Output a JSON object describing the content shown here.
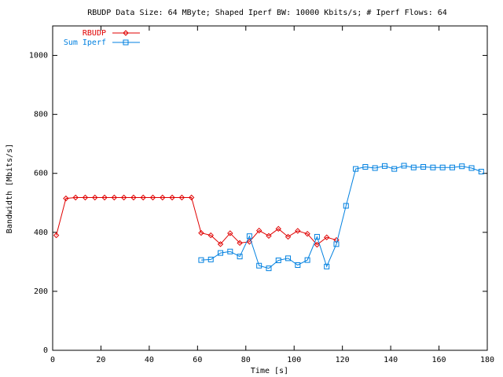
{
  "chart_data": {
    "type": "line",
    "title": "RBUDP Data Size: 64 MByte; Shaped Iperf BW: 10000 Kbits/s; # Iperf Flows: 64",
    "x_label": "Time [s]",
    "y_label": "Bandwidth [Mbits/s]",
    "xlim": [
      0,
      180
    ],
    "xticks": [
      0,
      20,
      40,
      60,
      80,
      100,
      120,
      140,
      160,
      180
    ],
    "ylim": [
      0,
      1100
    ],
    "yticks": [
      0,
      200,
      400,
      600,
      800,
      1000
    ],
    "legend": "top-left",
    "series": [
      {
        "name": "RBUDP",
        "color": "#e00000",
        "marker": "diamond",
        "x": [
          1.5,
          5.5,
          9.5,
          13.5,
          17.5,
          21.5,
          25.5,
          29.5,
          33.5,
          37.5,
          41.5,
          45.5,
          49.5,
          53.5,
          57.5,
          61.5,
          65.5,
          69.5,
          73.5,
          77.5,
          81.5,
          85.5,
          89.5,
          93.5,
          97.5,
          101.5,
          105.5,
          109.5,
          113.5,
          117.5
        ],
        "values": [
          390,
          515,
          518,
          518,
          518,
          518,
          518,
          518,
          518,
          518,
          518,
          518,
          518,
          518,
          518,
          398,
          390,
          360,
          397,
          364,
          368,
          406,
          388,
          412,
          385,
          405,
          395,
          358,
          383,
          374
        ]
      },
      {
        "name": "Sum Iperf",
        "color": "#0080e0",
        "marker": "square",
        "x": [
          61.5,
          65.5,
          69.5,
          73.5,
          77.5,
          81.5,
          85.5,
          89.5,
          93.5,
          97.5,
          101.5,
          105.5,
          109.5,
          113.5,
          117.5,
          121.5,
          125.5,
          129.5,
          133.5,
          137.5,
          141.5,
          145.5,
          149.5,
          153.5,
          157.5,
          161.5,
          165.5,
          169.5,
          173.5,
          177.5
        ],
        "values": [
          306,
          308,
          330,
          335,
          318,
          387,
          287,
          278,
          305,
          312,
          289,
          306,
          385,
          284,
          360,
          490,
          615,
          622,
          618,
          625,
          615,
          626,
          620,
          622,
          620,
          620,
          620,
          624,
          618,
          606
        ]
      }
    ]
  }
}
